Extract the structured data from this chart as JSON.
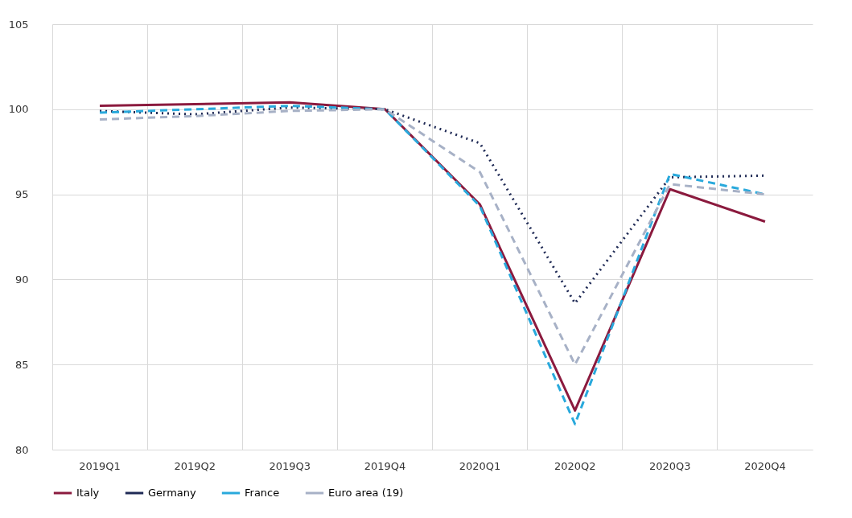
{
  "chart_data": {
    "type": "line",
    "categories": [
      "2019Q1",
      "2019Q2",
      "2019Q3",
      "2019Q4",
      "2020Q1",
      "2020Q2",
      "2020Q3",
      "2020Q4"
    ],
    "series": [
      {
        "name": "Italy",
        "color": "#8b1a3e",
        "line_style": "solid",
        "values": [
          100.2,
          100.3,
          100.4,
          100.0,
          94.4,
          82.3,
          95.3,
          93.4
        ]
      },
      {
        "name": "Germany",
        "color": "#1f2a55",
        "line_style": "dotted",
        "values": [
          99.9,
          99.7,
          100.1,
          100.0,
          98.0,
          88.6,
          96.0,
          96.1
        ]
      },
      {
        "name": "France",
        "color": "#29a9dc",
        "line_style": "dashed",
        "values": [
          99.8,
          100.0,
          100.2,
          100.0,
          94.3,
          81.5,
          96.2,
          95.0
        ]
      },
      {
        "name": "Euro area (19)",
        "color": "#a7b1c6",
        "line_style": "dashed",
        "values": [
          99.4,
          99.6,
          99.9,
          100.0,
          96.3,
          85.0,
          95.6,
          95.0
        ]
      }
    ],
    "ylim": [
      80,
      105
    ],
    "yticks": [
      80,
      85,
      90,
      95,
      100,
      105
    ],
    "grid": true,
    "legend": "bottom",
    "marker": "none"
  }
}
